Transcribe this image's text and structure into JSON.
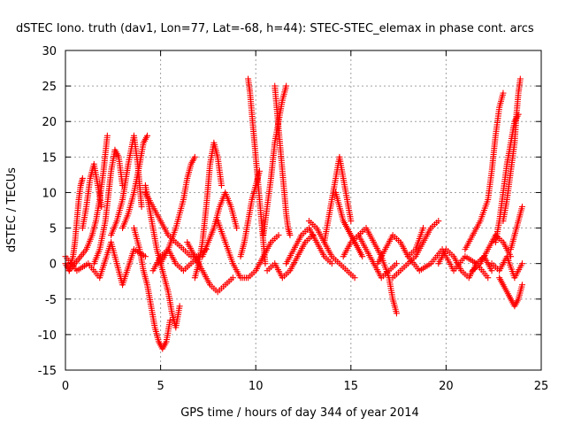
{
  "chart_data": {
    "type": "scatter",
    "title": "dSTEC Iono. truth (dav1, Lon=77, Lat=-68, h=44): STEC-STEC_elemax in phase cont. arcs",
    "xlabel": "GPS time / hours of day 344 of year 2014",
    "ylabel": "dSTEC  / TECUs",
    "xlim": [
      0,
      25
    ],
    "ylim": [
      -15,
      30
    ],
    "xticks": [
      0,
      5,
      10,
      15,
      20,
      25
    ],
    "yticks": [
      -15,
      -10,
      -5,
      0,
      5,
      10,
      15,
      20,
      25,
      30
    ],
    "xtick_labels": [
      "0",
      "5",
      "10",
      "15",
      "20",
      "25"
    ],
    "ytick_labels": [
      "-15",
      "-10",
      "-5",
      "0",
      "5",
      "10",
      "15",
      "20",
      "25",
      "30"
    ],
    "grid": true,
    "marker": "+",
    "color": "#ff0000",
    "series": [
      {
        "x": [
          0.0,
          0.2,
          0.4,
          0.5,
          0.6,
          0.7,
          0.8,
          0.9
        ],
        "y": [
          0,
          -1,
          1,
          3,
          6,
          9,
          11,
          12
        ]
      },
      {
        "x": [
          0.2,
          0.5,
          0.8,
          1.1,
          1.4,
          1.6,
          1.8,
          2.0,
          2.2
        ],
        "y": [
          -1,
          0,
          1,
          2,
          4,
          6,
          9,
          13,
          18
        ]
      },
      {
        "x": [
          0.9,
          1.1,
          1.3,
          1.5,
          1.7,
          1.9
        ],
        "y": [
          5,
          8,
          12,
          14,
          11,
          8
        ]
      },
      {
        "x": [
          1.5,
          1.8,
          2.1,
          2.4,
          2.6,
          2.8,
          3.0
        ],
        "y": [
          0,
          2,
          6,
          13,
          16,
          15,
          11
        ]
      },
      {
        "x": [
          2.4,
          2.7,
          3.0,
          3.3,
          3.6,
          3.8,
          4.0
        ],
        "y": [
          4,
          6,
          9,
          14,
          18,
          14,
          8
        ]
      },
      {
        "x": [
          3.0,
          3.3,
          3.6,
          3.9,
          4.1,
          4.3
        ],
        "y": [
          5,
          7,
          10,
          14,
          17,
          18
        ]
      },
      {
        "x": [
          0.0,
          0.6,
          1.2,
          1.8,
          2.4,
          3.0,
          3.6,
          4.2
        ],
        "y": [
          1,
          -1,
          0,
          -2,
          3,
          -3,
          2,
          1
        ]
      },
      {
        "x": [
          3.6,
          3.9,
          4.1,
          4.3,
          4.5,
          4.7,
          4.9,
          5.1,
          5.3,
          5.5
        ],
        "y": [
          5,
          2,
          -1,
          -3,
          -6,
          -9,
          -11,
          -12,
          -11,
          -8
        ]
      },
      {
        "x": [
          4.2,
          4.4,
          4.6,
          4.8,
          5.0,
          5.2,
          5.4,
          5.6,
          5.8,
          6.0
        ],
        "y": [
          11,
          8,
          5,
          2,
          0,
          -2,
          -4,
          -7,
          -9,
          -6
        ]
      },
      {
        "x": [
          4.2,
          4.6,
          5.0,
          5.4,
          5.8,
          6.2,
          6.6,
          7.0
        ],
        "y": [
          10,
          8,
          6,
          4,
          3,
          2,
          1,
          1
        ]
      },
      {
        "x": [
          5.0,
          5.4,
          5.8,
          6.2,
          6.4,
          6.6,
          6.8
        ],
        "y": [
          0,
          2,
          5,
          9,
          12,
          14,
          15
        ]
      },
      {
        "x": [
          4.6,
          5.0,
          5.4,
          5.8,
          6.2,
          6.6,
          7.0,
          7.4
        ],
        "y": [
          -1,
          1,
          2,
          0,
          -1,
          0,
          1,
          2
        ]
      },
      {
        "x": [
          6.8,
          7.0,
          7.2,
          7.4,
          7.6,
          7.8,
          8.0,
          8.2
        ],
        "y": [
          -2,
          0,
          3,
          8,
          14,
          17,
          15,
          11
        ]
      },
      {
        "x": [
          7.2,
          7.5,
          7.8,
          8.1,
          8.4,
          8.7,
          9.0
        ],
        "y": [
          1,
          3,
          5,
          8,
          10,
          8,
          5
        ]
      },
      {
        "x": [
          6.4,
          6.8,
          7.2,
          7.6,
          8.0,
          8.4,
          8.8
        ],
        "y": [
          3,
          1,
          -1,
          -3,
          -4,
          -3,
          -2
        ]
      },
      {
        "x": [
          8.0,
          8.4,
          8.8,
          9.2,
          9.6,
          10.0,
          10.4,
          10.8,
          11.2
        ],
        "y": [
          6,
          3,
          0,
          -2,
          -2,
          -1,
          1,
          3,
          4
        ]
      },
      {
        "x": [
          9.6,
          9.7,
          9.8,
          9.9,
          10.0,
          10.1,
          10.2,
          10.3,
          10.4,
          10.5
        ],
        "y": [
          26,
          24,
          21,
          18,
          15,
          12,
          9,
          6,
          3,
          0
        ]
      },
      {
        "x": [
          9.2,
          9.4,
          9.6,
          9.8,
          10.0,
          10.2
        ],
        "y": [
          1,
          3,
          6,
          9,
          11,
          13
        ]
      },
      {
        "x": [
          10.4,
          10.6,
          10.8,
          11.0,
          11.2,
          11.4,
          11.6
        ],
        "y": [
          4,
          8,
          12,
          17,
          20,
          23,
          25
        ]
      },
      {
        "x": [
          11.0,
          11.1,
          11.2,
          11.3,
          11.4,
          11.5,
          11.6,
          11.7,
          11.8
        ],
        "y": [
          25,
          22,
          19,
          16,
          13,
          10,
          7,
          5,
          4
        ]
      },
      {
        "x": [
          10.6,
          11.0,
          11.4,
          11.8,
          12.2,
          12.6,
          13.0
        ],
        "y": [
          -1,
          0,
          -2,
          -1,
          1,
          3,
          4
        ]
      },
      {
        "x": [
          11.6,
          12.0,
          12.4,
          12.8,
          13.2,
          13.6,
          14.0
        ],
        "y": [
          0,
          2,
          4,
          5,
          3,
          1,
          0
        ]
      },
      {
        "x": [
          12.8,
          13.2,
          13.6,
          14.0,
          14.4,
          14.8,
          15.2
        ],
        "y": [
          6,
          5,
          3,
          1,
          0,
          -1,
          -2
        ]
      },
      {
        "x": [
          13.6,
          13.8,
          14.0,
          14.2,
          14.4,
          14.6,
          14.8,
          15.0
        ],
        "y": [
          3,
          6,
          9,
          12,
          15,
          12,
          9,
          6
        ]
      },
      {
        "x": [
          14.2,
          14.4,
          14.6,
          14.8,
          15.0,
          15.2,
          15.4,
          15.6
        ],
        "y": [
          10,
          8,
          6,
          5,
          4,
          3,
          2,
          1
        ]
      },
      {
        "x": [
          14.6,
          15.0,
          15.4,
          15.8,
          16.2,
          16.6,
          17.0,
          17.4
        ],
        "y": [
          1,
          3,
          4,
          2,
          0,
          -2,
          -1,
          0
        ]
      },
      {
        "x": [
          15.4,
          15.8,
          16.2,
          16.6,
          17.0,
          17.2,
          17.4
        ],
        "y": [
          4,
          5,
          3,
          1,
          -2,
          -5,
          -7
        ]
      },
      {
        "x": [
          16.4,
          16.8,
          17.2,
          17.6,
          18.0,
          18.4,
          18.8
        ],
        "y": [
          0,
          2,
          4,
          3,
          1,
          2,
          5
        ]
      },
      {
        "x": [
          17.2,
          17.6,
          18.0,
          18.4,
          18.8,
          19.2,
          19.6
        ],
        "y": [
          -2,
          -1,
          0,
          1,
          3,
          5,
          6
        ]
      },
      {
        "x": [
          18.0,
          18.6,
          19.2,
          19.8,
          20.4,
          21.0,
          21.6,
          22.2
        ],
        "y": [
          1,
          -1,
          0,
          2,
          -1,
          1,
          0,
          -2
        ]
      },
      {
        "x": [
          19.6,
          20.0,
          20.4,
          20.8,
          21.2,
          21.6,
          22.0,
          22.4
        ],
        "y": [
          0,
          2,
          1,
          -1,
          -2,
          0,
          1,
          -1
        ]
      },
      {
        "x": [
          21.0,
          21.4,
          21.8,
          22.2,
          22.4,
          22.6,
          22.8,
          23.0
        ],
        "y": [
          2,
          4,
          6,
          9,
          13,
          18,
          22,
          24
        ]
      },
      {
        "x": [
          21.4,
          21.8,
          22.2,
          22.6,
          23.0,
          23.4
        ],
        "y": [
          -1,
          0,
          2,
          4,
          3,
          1
        ]
      },
      {
        "x": [
          22.6,
          22.8,
          23.0,
          23.2,
          23.4,
          23.6,
          23.8
        ],
        "y": [
          3,
          6,
          10,
          14,
          17,
          20,
          21
        ]
      },
      {
        "x": [
          22.8,
          23.0,
          23.2,
          23.4,
          23.6,
          23.8,
          24.0
        ],
        "y": [
          -2,
          -3,
          -4,
          -5,
          -6,
          -5,
          -3
        ]
      },
      {
        "x": [
          23.0,
          23.2,
          23.4,
          23.6,
          23.7,
          23.8,
          23.9
        ],
        "y": [
          6,
          9,
          13,
          17,
          21,
          24,
          26
        ]
      },
      {
        "x": [
          23.4,
          23.6,
          23.8,
          24.0
        ],
        "y": [
          2,
          4,
          6,
          8
        ]
      },
      {
        "x": [
          22.4,
          22.8,
          23.2,
          23.6,
          24.0
        ],
        "y": [
          0,
          -1,
          1,
          -2,
          0
        ]
      }
    ]
  }
}
